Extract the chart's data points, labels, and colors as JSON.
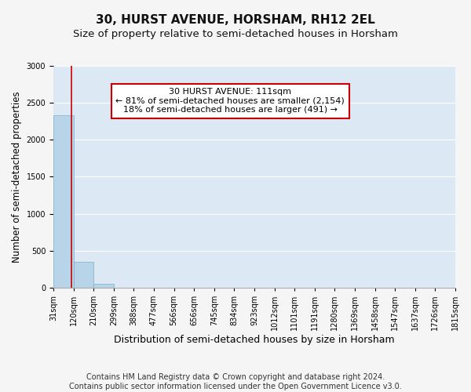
{
  "title": "30, HURST AVENUE, HORSHAM, RH12 2EL",
  "subtitle": "Size of property relative to semi-detached houses in Horsham",
  "xlabel": "Distribution of semi-detached houses by size in Horsham",
  "ylabel": "Number of semi-detached properties",
  "footer": "Contains HM Land Registry data © Crown copyright and database right 2024.\nContains public sector information licensed under the Open Government Licence v3.0.",
  "bins": [
    "31sqm",
    "120sqm",
    "210sqm",
    "299sqm",
    "388sqm",
    "477sqm",
    "566sqm",
    "656sqm",
    "745sqm",
    "834sqm",
    "923sqm",
    "1012sqm",
    "1101sqm",
    "1191sqm",
    "1280sqm",
    "1369sqm",
    "1458sqm",
    "1547sqm",
    "1637sqm",
    "1726sqm",
    "1815sqm"
  ],
  "values": [
    2330,
    345,
    50,
    0,
    0,
    0,
    0,
    0,
    0,
    0,
    0,
    0,
    0,
    0,
    0,
    0,
    0,
    0,
    0,
    0
  ],
  "bar_color": "#b8d4e8",
  "bar_edge_color": "#7aafc8",
  "highlight_color": "#cc0000",
  "annotation_line1": "30 HURST AVENUE: 111sqm",
  "annotation_line2": "← 81% of semi-detached houses are smaller (2,154)",
  "annotation_line3": "18% of semi-detached houses are larger (491) →",
  "annotation_box_color": "#ffffff",
  "annotation_box_edge_color": "#cc0000",
  "ylim": [
    0,
    3000
  ],
  "yticks": [
    0,
    500,
    1000,
    1500,
    2000,
    2500,
    3000
  ],
  "grid_color": "#ffffff",
  "bg_color": "#dce9f5",
  "fig_bg_color": "#f5f5f5",
  "title_fontsize": 11,
  "subtitle_fontsize": 9.5,
  "xlabel_fontsize": 9,
  "ylabel_fontsize": 8.5,
  "tick_fontsize": 7,
  "footer_fontsize": 7,
  "ann_fontsize": 8
}
